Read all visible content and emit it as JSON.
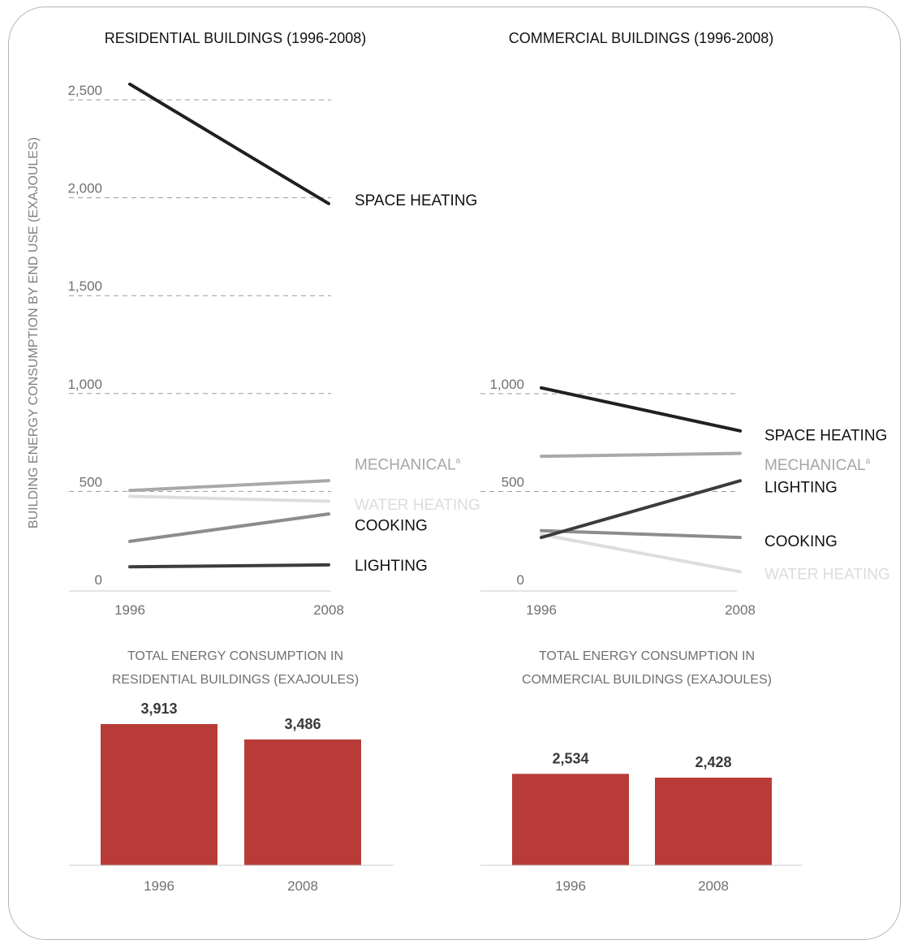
{
  "axis_label": "BUILDING ENERGY CONSUMPTION BY END USE (EXAJOULES)",
  "colors": {
    "space_heating": "#231f20",
    "lighting": "#3c3c3c",
    "mechanical": "#a9a9a9",
    "cooking": "#8c8c8c",
    "water_heating": "#dddddd",
    "bar": "#b83b37",
    "label_dark": "#111111",
    "label_gray": "#707070",
    "grid": "#999999"
  },
  "chart_data": [
    {
      "type": "line",
      "title": "RESIDENTIAL BUILDINGS (1996-2008)",
      "x": [
        "1996",
        "2008"
      ],
      "ylim": [
        0,
        2500
      ],
      "yticks": [
        "2,500",
        "2,000",
        "1,500",
        "1,000",
        "500",
        "0"
      ],
      "ytick_values": [
        2500,
        2000,
        1500,
        1000,
        500,
        0
      ],
      "ylabel": "BUILDING ENERGY CONSUMPTION BY END USE (EXAJOULES)",
      "grid": true,
      "series": [
        {
          "name": "SPACE HEATING",
          "key": "space_heating",
          "values": [
            2580,
            1970
          ],
          "label_value": 1990,
          "label_tone": "dark"
        },
        {
          "name": "MECHANICAL",
          "superscript": "a",
          "key": "mechanical",
          "values": [
            505,
            555
          ],
          "label_value": 640,
          "label_tone": "gray"
        },
        {
          "name": "WATER HEATING",
          "key": "water_heating",
          "values": [
            475,
            450
          ],
          "label_value": 435,
          "label_tone": "light"
        },
        {
          "name": "COOKING",
          "key": "cooking",
          "values": [
            245,
            385
          ],
          "label_value": 330,
          "label_tone": "dark"
        },
        {
          "name": "LIGHTING",
          "key": "lighting",
          "values": [
            115,
            125
          ],
          "label_value": 125,
          "label_tone": "dark"
        }
      ]
    },
    {
      "type": "line",
      "title": "COMMERCIAL BUILDINGS (1996-2008)",
      "x": [
        "1996",
        "2008"
      ],
      "ylim": [
        0,
        1000
      ],
      "yticks": [
        "1,000",
        "500",
        "0"
      ],
      "ytick_values": [
        1000,
        500,
        0
      ],
      "grid": true,
      "series": [
        {
          "name": "SPACE HEATING",
          "key": "space_heating",
          "values": [
            1030,
            810
          ],
          "label_value": 790,
          "label_tone": "dark"
        },
        {
          "name": "MECHANICAL",
          "superscript": "a",
          "key": "mechanical",
          "values": [
            680,
            695
          ],
          "label_value": 640,
          "label_tone": "gray"
        },
        {
          "name": "LIGHTING",
          "key": "lighting",
          "values": [
            265,
            555
          ],
          "label_value": 525,
          "label_tone": "dark"
        },
        {
          "name": "COOKING",
          "key": "cooking",
          "values": [
            300,
            265
          ],
          "label_value": 250,
          "label_tone": "dark"
        },
        {
          "name": "WATER HEATING",
          "key": "water_heating",
          "values": [
            280,
            90
          ],
          "label_value": 80,
          "label_tone": "light"
        }
      ]
    },
    {
      "type": "bar",
      "title": "TOTAL ENERGY CONSUMPTION IN RESIDENTIAL BUILDINGS (EXAJOULES)",
      "title_lines": [
        "TOTAL ENERGY CONSUMPTION IN",
        "RESIDENTIAL BUILDINGS (EXAJOULES)"
      ],
      "categories": [
        "1996",
        "2008"
      ],
      "values": [
        3913,
        3486
      ],
      "value_labels": [
        "3,913",
        "3,486"
      ]
    },
    {
      "type": "bar",
      "title": "TOTAL ENERGY CONSUMPTION IN COMMERCIAL BUILDINGS (EXAJOULES)",
      "title_lines": [
        "TOTAL ENERGY CONSUMPTION IN",
        "COMMERCIAL BUILDINGS (EXAJOULES)"
      ],
      "categories": [
        "1996",
        "2008"
      ],
      "values": [
        2534,
        2428
      ],
      "value_labels": [
        "2,534",
        "2,428"
      ]
    }
  ]
}
